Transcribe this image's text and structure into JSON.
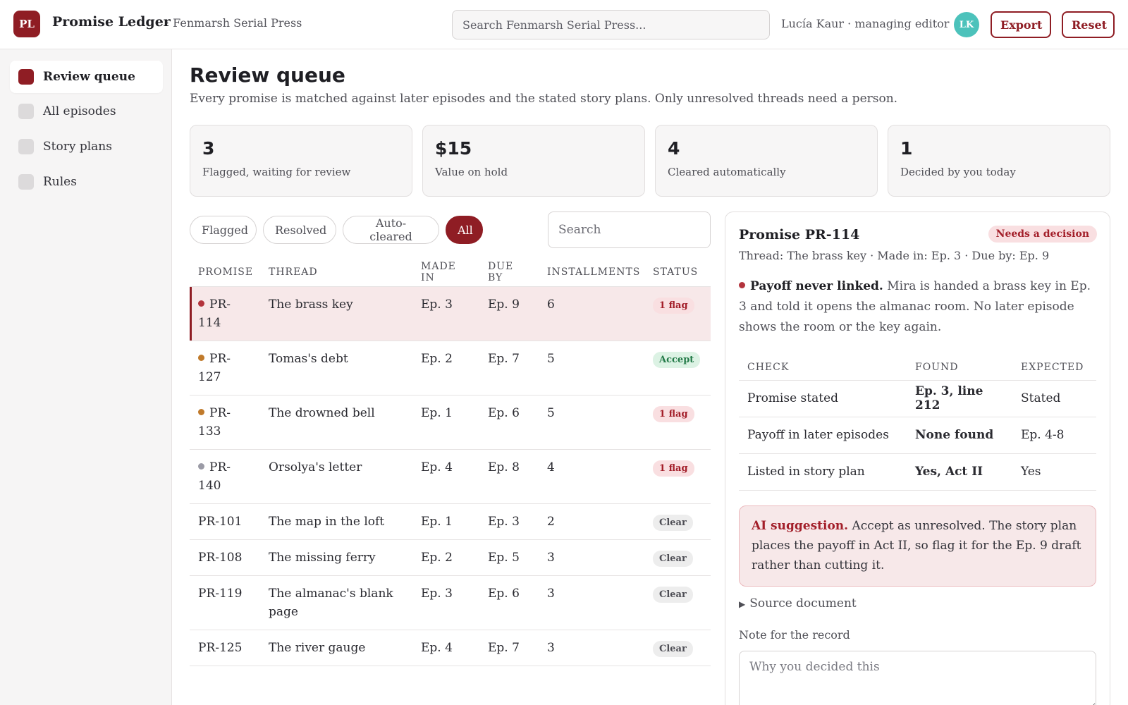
{
  "app": {
    "logo": "PL",
    "name": "Promise Ledger",
    "org": "· Fenmarsh Serial Press"
  },
  "topbar": {
    "search_placeholder": "Search Fenmarsh Serial Press...",
    "user": "Lucía Kaur · managing editor",
    "avatar": "LK",
    "export_label": "Export",
    "reset_label": "Reset"
  },
  "sidebar": {
    "items": [
      {
        "label": "Review queue",
        "active": true
      },
      {
        "label": "All episodes"
      },
      {
        "label": "Story plans"
      },
      {
        "label": "Rules"
      }
    ]
  },
  "main": {
    "title": "Review queue",
    "subtitle": "Every promise is matched against later episodes and the stated story plans. Only unresolved threads need a person.",
    "stats": [
      {
        "value": "3",
        "label": "Flagged, waiting for review"
      },
      {
        "value": "$15",
        "label": "Value on hold"
      },
      {
        "value": "4",
        "label": "Cleared automatically"
      },
      {
        "value": "1",
        "label": "Decided by you today"
      }
    ],
    "filters": [
      "Flagged",
      "Resolved",
      "Auto-cleared",
      "All"
    ],
    "active_filter": "All",
    "search_placeholder": "Search"
  },
  "table": {
    "headers": [
      "PROMISE",
      "THREAD",
      "MADE IN",
      "DUE BY",
      "INSTALLMENTS",
      "STATUS"
    ],
    "rows": [
      {
        "id": "PR-114",
        "thread": "The brass key",
        "made": "Ep. 3",
        "due": "Ep. 9",
        "inst": "6",
        "status": "1 flag",
        "kind": "flag",
        "dot": "#b3343d",
        "selected": true
      },
      {
        "id": "PR-127",
        "thread": "Tomas's debt",
        "made": "Ep. 2",
        "due": "Ep. 7",
        "inst": "5",
        "status": "Accept",
        "kind": "accept",
        "dot": "#c07a2b"
      },
      {
        "id": "PR-133",
        "thread": "The drowned bell",
        "made": "Ep. 1",
        "due": "Ep. 6",
        "inst": "5",
        "status": "1 flag",
        "kind": "flag",
        "dot": "#c07a2b"
      },
      {
        "id": "PR-140",
        "thread": "Orsolya's letter",
        "made": "Ep. 4",
        "due": "Ep. 8",
        "inst": "4",
        "status": "1 flag",
        "kind": "flag",
        "dot": "#9b9ba6"
      },
      {
        "id": "PR-101",
        "thread": "The map in the loft",
        "made": "Ep. 1",
        "due": "Ep. 3",
        "inst": "2",
        "status": "Clear",
        "kind": "clear"
      },
      {
        "id": "PR-108",
        "thread": "The missing ferry",
        "made": "Ep. 2",
        "due": "Ep. 5",
        "inst": "3",
        "status": "Clear",
        "kind": "clear"
      },
      {
        "id": "PR-119",
        "thread": "The almanac's blank page",
        "made": "Ep. 3",
        "due": "Ep. 6",
        "inst": "3",
        "status": "Clear",
        "kind": "clear"
      },
      {
        "id": "PR-125",
        "thread": "The river gauge",
        "made": "Ep. 4",
        "due": "Ep. 7",
        "inst": "3",
        "status": "Clear",
        "kind": "clear"
      }
    ]
  },
  "detail": {
    "title": "Promise PR-114",
    "status": "Needs a decision",
    "meta": "Thread: The brass key · Made in: Ep. 3 · Due by: Ep. 9",
    "issue_title": "Payoff never linked.",
    "issue_text": "Mira is handed a brass key in Ep. 3 and told it opens the almanac room. No later episode shows the room or the key again.",
    "check_headers": [
      "CHECK",
      "FOUND",
      "EXPECTED"
    ],
    "checks": [
      {
        "check": "Promise stated",
        "found": "Ep. 3, line 212",
        "ok": true,
        "expected": "Stated"
      },
      {
        "check": "Payoff in later episodes",
        "found": "None found",
        "ok": false,
        "expected": "Ep. 4-8"
      },
      {
        "check": "Listed in story plan",
        "found": "Yes, Act II",
        "ok": true,
        "expected": "Yes"
      }
    ],
    "ai_label": "AI suggestion.",
    "ai_text": "Accept as unresolved. The story plan places the payoff in Act II, so flag it for the Ep. 9 draft rather than cutting it.",
    "source_label": "Source document",
    "note_label": "Note for the record",
    "note_placeholder": "Why you decided this"
  }
}
